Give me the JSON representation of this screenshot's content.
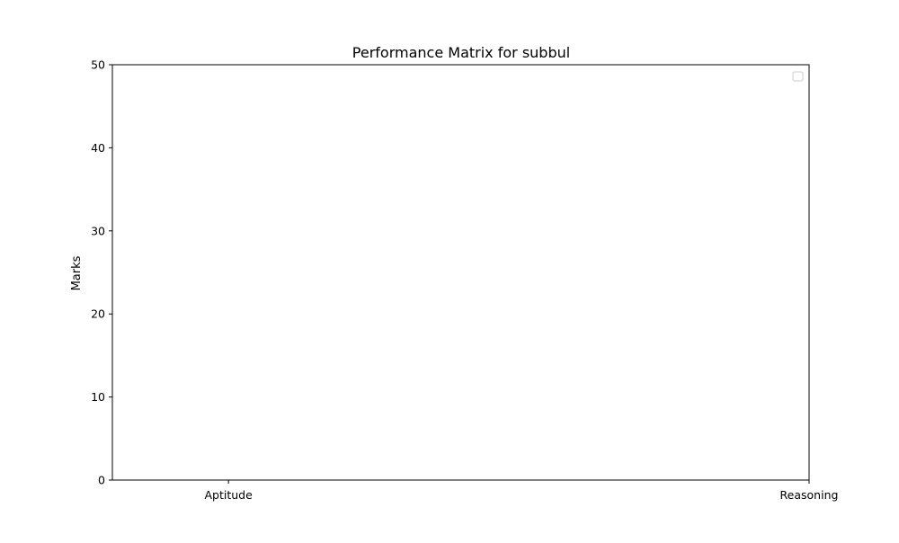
{
  "chart_data": {
    "type": "bar",
    "title": "Performance Matrix for subbul",
    "xlabel": "",
    "ylabel": "Marks",
    "categories": [
      "Aptitude",
      "Reasoning"
    ],
    "series": [],
    "ylim": [
      0,
      50
    ],
    "yticks": [
      0,
      10,
      20,
      30,
      40,
      50
    ],
    "grid": false,
    "legend": {
      "placement": "top-right",
      "entries": []
    }
  }
}
